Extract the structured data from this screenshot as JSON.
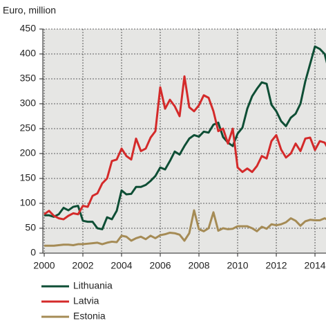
{
  "chart_data": {
    "type": "line",
    "y_label": "Euro, million",
    "x": [
      2000,
      2000.25,
      2000.5,
      2000.75,
      2001,
      2001.25,
      2001.5,
      2001.75,
      2002,
      2002.25,
      2002.5,
      2002.75,
      2003,
      2003.25,
      2003.5,
      2003.75,
      2004,
      2004.25,
      2004.5,
      2004.75,
      2005,
      2005.25,
      2005.5,
      2005.75,
      2006,
      2006.25,
      2006.5,
      2006.75,
      2007,
      2007.25,
      2007.5,
      2007.75,
      2008,
      2008.25,
      2008.5,
      2008.75,
      2009,
      2009.25,
      2009.5,
      2009.75,
      2010,
      2010.25,
      2010.5,
      2010.75,
      2011,
      2011.25,
      2011.5,
      2011.75,
      2012,
      2012.25,
      2012.5,
      2012.75,
      2013,
      2013.25,
      2013.5,
      2013.75,
      2014,
      2014.25,
      2014.5,
      2014.75
    ],
    "series": [
      {
        "name": "Lithuania",
        "color": "#0e4e35",
        "values": [
          76,
          76,
          73,
          78,
          91,
          86,
          93,
          95,
          65,
          63,
          63,
          50,
          48,
          72,
          68,
          85,
          126,
          118,
          119,
          133,
          133,
          137,
          145,
          155,
          172,
          168,
          185,
          204,
          198,
          215,
          230,
          237,
          234,
          244,
          242,
          258,
          262,
          233,
          222,
          215,
          240,
          252,
          290,
          315,
          330,
          343,
          340,
          298,
          285,
          265,
          255,
          272,
          280,
          300,
          345,
          380,
          415,
          410,
          400,
          362
        ]
      },
      {
        "name": "Latvia",
        "color": "#d42a2a",
        "values": [
          78,
          85,
          75,
          70,
          68,
          75,
          80,
          78,
          95,
          93,
          115,
          120,
          140,
          150,
          185,
          188,
          210,
          195,
          188,
          230,
          205,
          210,
          232,
          245,
          333,
          290,
          308,
          295,
          275,
          355,
          293,
          285,
          297,
          317,
          312,
          285,
          245,
          250,
          220,
          250,
          172,
          163,
          170,
          163,
          175,
          195,
          190,
          225,
          237,
          208,
          192,
          200,
          220,
          205,
          230,
          232,
          207,
          225,
          222,
          205
        ]
      },
      {
        "name": "Estonia",
        "color": "#a58b55",
        "values": [
          15,
          15,
          15,
          16,
          17,
          17,
          16,
          18,
          18,
          19,
          20,
          21,
          18,
          21,
          23,
          22,
          35,
          33,
          25,
          30,
          33,
          28,
          35,
          30,
          36,
          38,
          41,
          40,
          37,
          25,
          40,
          86,
          48,
          44,
          50,
          82,
          45,
          50,
          48,
          49,
          54,
          54,
          54,
          50,
          44,
          53,
          49,
          58,
          56,
          58,
          62,
          70,
          65,
          55,
          64,
          67,
          66,
          66,
          70,
          65
        ]
      }
    ],
    "xlim": [
      2000,
      2014.57
    ],
    "xticks": [
      2000,
      2002,
      2004,
      2006,
      2008,
      2010,
      2012,
      2014
    ],
    "ylim": [
      0,
      450
    ],
    "yticks": [
      0,
      50,
      100,
      150,
      200,
      250,
      300,
      350,
      400,
      450
    ],
    "grid": true
  }
}
